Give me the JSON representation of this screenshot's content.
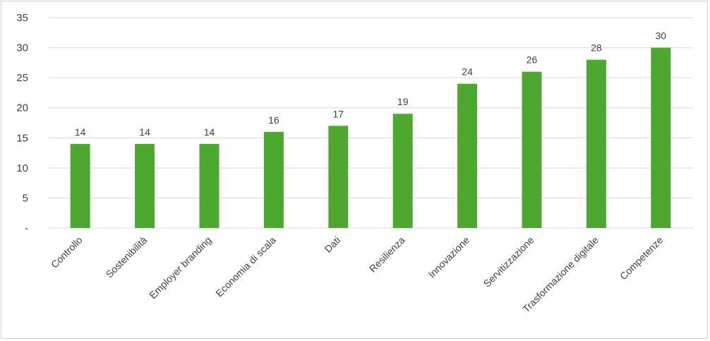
{
  "chart_data": {
    "type": "bar",
    "title": "",
    "xlabel": "",
    "ylabel": "",
    "ylim": [
      0,
      35
    ],
    "yticks": [
      0,
      5,
      10,
      15,
      20,
      25,
      30,
      35
    ],
    "ytick_labels": [
      "-",
      "5",
      "10",
      "15",
      "20",
      "25",
      "30",
      "35"
    ],
    "grid": true,
    "legend": "none",
    "bar_color": "#4ea72e",
    "categories": [
      "Controllo",
      "Sostenibilità",
      "Employer branding",
      "Economia di scala",
      "Dati",
      "Resilienza",
      "Innovazione",
      "Servitizzazione",
      "Trasformazione digitale",
      "Competenze"
    ],
    "values": [
      14,
      14,
      14,
      16,
      17,
      19,
      24,
      26,
      28,
      30
    ],
    "data_labels": true
  }
}
